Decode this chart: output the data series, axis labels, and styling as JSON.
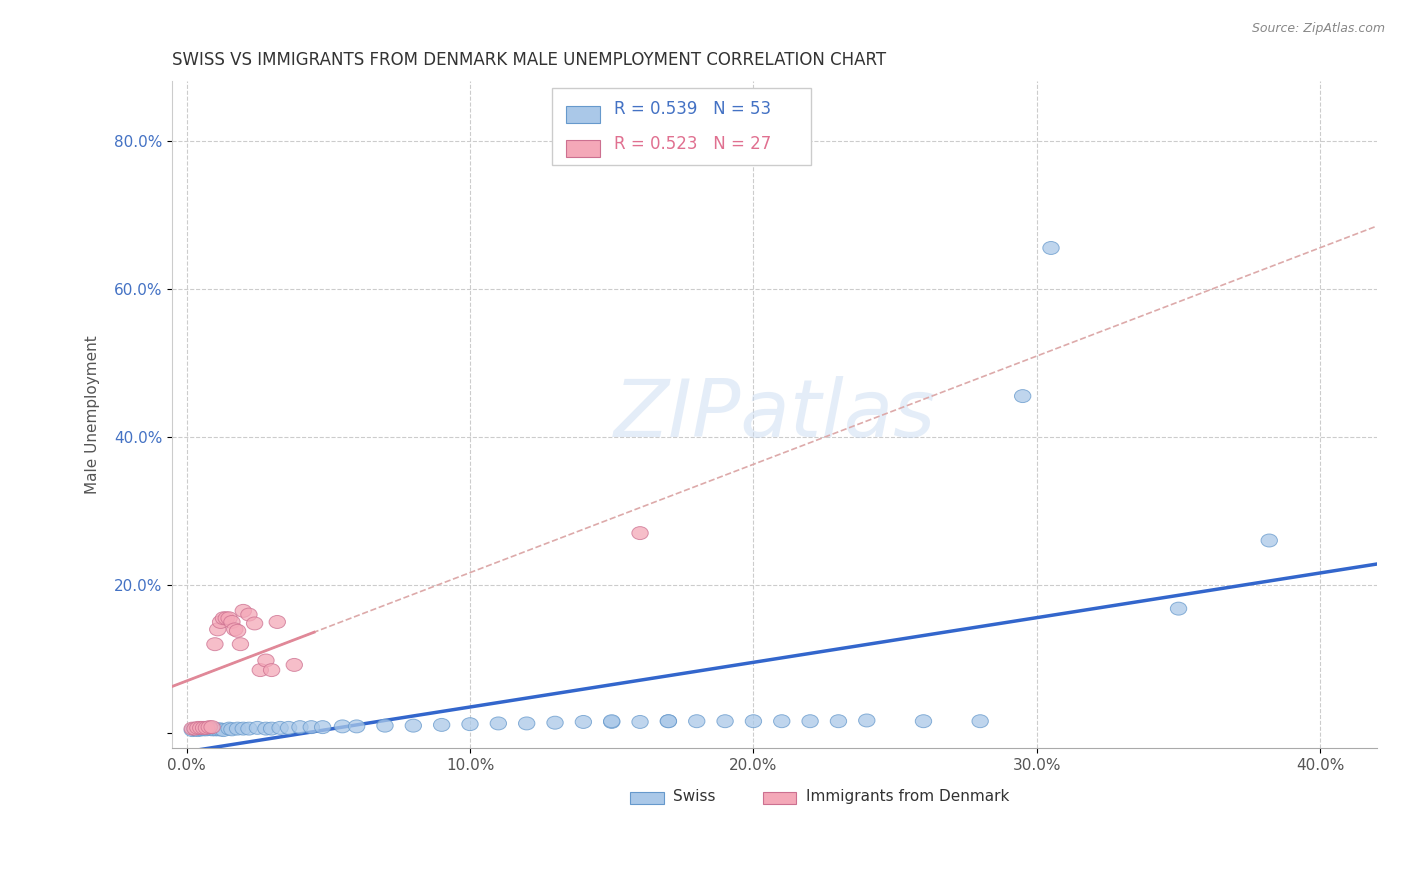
{
  "title": "SWISS VS IMMIGRANTS FROM DENMARK MALE UNEMPLOYMENT CORRELATION CHART",
  "source_text": "Source: ZipAtlas.com",
  "ylabel": "Male Unemployment",
  "xlim": [
    -0.005,
    0.42
  ],
  "ylim": [
    -0.02,
    0.88
  ],
  "xticks": [
    0.0,
    0.1,
    0.2,
    0.3,
    0.4
  ],
  "yticks": [
    0.0,
    0.2,
    0.4,
    0.6,
    0.8
  ],
  "xtick_labels": [
    "0.0%",
    "10.0%",
    "20.0%",
    "30.0%",
    "40.0%"
  ],
  "ytick_labels": [
    "",
    "20.0%",
    "40.0%",
    "60.0%",
    "80.0%"
  ],
  "swiss_color": "#aac8e8",
  "swiss_edge_color": "#6699cc",
  "denmark_color": "#f4a8b8",
  "denmark_edge_color": "#cc7090",
  "swiss_line_color": "#3366cc",
  "denmark_line_color": "#e08898",
  "denmark_dash_color": "#ddaaaa",
  "R_swiss": 0.539,
  "N_swiss": 53,
  "R_denmark": 0.523,
  "N_denmark": 27,
  "watermark": "ZIPatlas",
  "swiss_x": [
    0.002,
    0.003,
    0.004,
    0.005,
    0.006,
    0.007,
    0.008,
    0.009,
    0.01,
    0.011,
    0.012,
    0.013,
    0.015,
    0.016,
    0.018,
    0.02,
    0.022,
    0.025,
    0.028,
    0.03,
    0.033,
    0.036,
    0.04,
    0.044,
    0.048,
    0.055,
    0.06,
    0.07,
    0.08,
    0.09,
    0.1,
    0.11,
    0.12,
    0.13,
    0.14,
    0.15,
    0.16,
    0.17,
    0.18,
    0.2,
    0.22,
    0.24,
    0.26,
    0.28,
    0.15,
    0.17,
    0.19,
    0.21,
    0.23,
    0.295,
    0.305,
    0.35,
    0.382
  ],
  "swiss_y": [
    0.004,
    0.005,
    0.004,
    0.005,
    0.005,
    0.005,
    0.006,
    0.005,
    0.005,
    0.005,
    0.005,
    0.004,
    0.006,
    0.005,
    0.006,
    0.006,
    0.006,
    0.007,
    0.006,
    0.006,
    0.007,
    0.007,
    0.008,
    0.008,
    0.008,
    0.009,
    0.009,
    0.01,
    0.01,
    0.011,
    0.012,
    0.013,
    0.013,
    0.014,
    0.015,
    0.015,
    0.015,
    0.016,
    0.016,
    0.016,
    0.016,
    0.017,
    0.016,
    0.016,
    0.016,
    0.016,
    0.016,
    0.016,
    0.016,
    0.455,
    0.655,
    0.168,
    0.26
  ],
  "dk_x": [
    0.002,
    0.003,
    0.004,
    0.005,
    0.006,
    0.007,
    0.008,
    0.009,
    0.01,
    0.011,
    0.012,
    0.013,
    0.014,
    0.015,
    0.016,
    0.017,
    0.018,
    0.019,
    0.02,
    0.022,
    0.024,
    0.026,
    0.028,
    0.03,
    0.032,
    0.038,
    0.16
  ],
  "dk_y": [
    0.006,
    0.006,
    0.007,
    0.007,
    0.007,
    0.007,
    0.008,
    0.008,
    0.12,
    0.14,
    0.15,
    0.155,
    0.155,
    0.155,
    0.15,
    0.14,
    0.138,
    0.12,
    0.165,
    0.16,
    0.148,
    0.085,
    0.098,
    0.085,
    0.15,
    0.092,
    0.27
  ]
}
